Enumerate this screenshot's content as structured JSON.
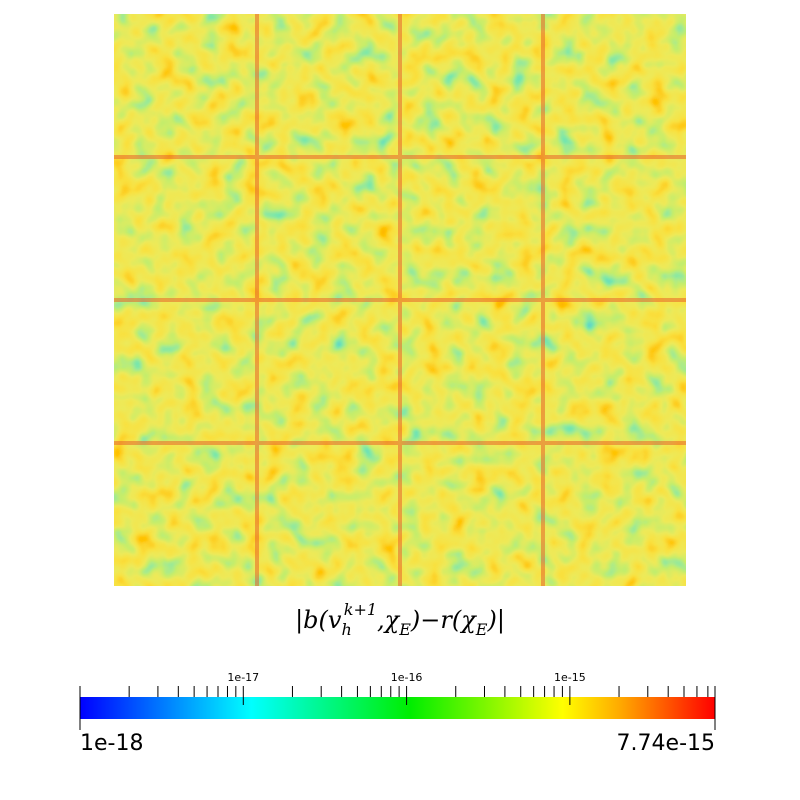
{
  "field": {
    "title_parts": [
      "|b(v",
      "h",
      "k+1",
      ",χ",
      "E",
      ")−r(χ",
      "E",
      ")|"
    ]
  },
  "colorbar": {
    "range": [
      1e-18,
      7.74e-15
    ],
    "ticks": [
      1e-17,
      1e-16,
      1e-15
    ],
    "log_scale": true
  }
}
